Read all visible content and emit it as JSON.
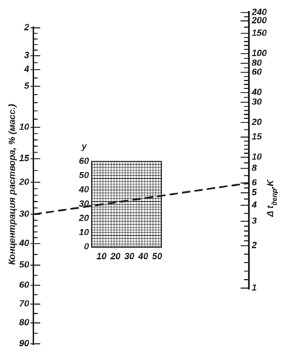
{
  "left_scale": {
    "title": "Концентрация раствора, % (масс.)",
    "labels": [
      "2",
      "3",
      "4",
      "5",
      "10",
      "15",
      "20",
      "30",
      "40",
      "50",
      "60",
      "70",
      "80",
      "90"
    ]
  },
  "right_scale": {
    "title": "Δ t",
    "title_subscript": "депр",
    "title_unit": ",K",
    "labels": [
      "1",
      "2",
      "3",
      "4",
      "5",
      "6",
      "8",
      "10",
      "15",
      "20",
      "30",
      "40",
      "60",
      "80",
      "100",
      "150",
      "200",
      "240"
    ]
  },
  "grid": {
    "y_label": "y",
    "y_labels": [
      "0",
      "10",
      "20",
      "30",
      "40",
      "50",
      "60"
    ],
    "x_labels": [
      "10",
      "20",
      "30",
      "40",
      "50"
    ]
  }
}
